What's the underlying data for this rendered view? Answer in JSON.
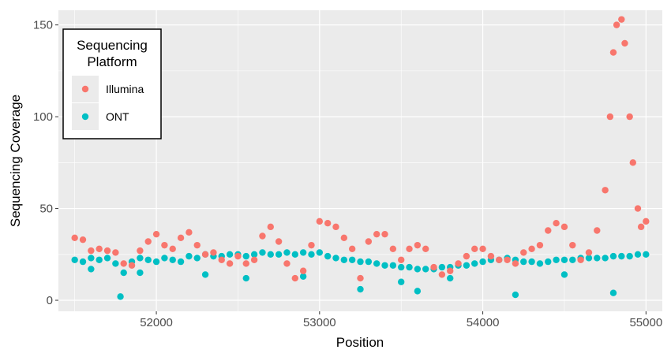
{
  "chart_data": {
    "type": "scatter",
    "title": "",
    "xlabel": "Position",
    "ylabel": "Sequencing Coverage",
    "xlim": [
      51400,
      55100
    ],
    "ylim": [
      -6,
      158
    ],
    "xticks": [
      52000,
      53000,
      54000,
      55000
    ],
    "yticks": [
      0,
      50,
      100,
      150
    ],
    "grid": true,
    "legend": {
      "title_lines": [
        "Sequencing",
        "Platform"
      ],
      "placement": "top-left"
    },
    "series": [
      {
        "name": "Illumina",
        "color": "#F8766D",
        "points": [
          [
            51500,
            34
          ],
          [
            51550,
            33
          ],
          [
            51600,
            27
          ],
          [
            51650,
            28
          ],
          [
            51700,
            27
          ],
          [
            51750,
            26
          ],
          [
            51800,
            20
          ],
          [
            51850,
            19
          ],
          [
            51900,
            27
          ],
          [
            51950,
            32
          ],
          [
            52000,
            36
          ],
          [
            52050,
            30
          ],
          [
            52100,
            28
          ],
          [
            52150,
            34
          ],
          [
            52200,
            37
          ],
          [
            52250,
            30
          ],
          [
            52300,
            25
          ],
          [
            52350,
            26
          ],
          [
            52400,
            22
          ],
          [
            52450,
            20
          ],
          [
            52500,
            24
          ],
          [
            52550,
            20
          ],
          [
            52600,
            22
          ],
          [
            52650,
            35
          ],
          [
            52700,
            40
          ],
          [
            52750,
            32
          ],
          [
            52800,
            20
          ],
          [
            52850,
            12
          ],
          [
            52900,
            16
          ],
          [
            52950,
            30
          ],
          [
            53000,
            43
          ],
          [
            53050,
            42
          ],
          [
            53100,
            40
          ],
          [
            53150,
            34
          ],
          [
            53200,
            28
          ],
          [
            53250,
            12
          ],
          [
            53300,
            32
          ],
          [
            53350,
            36
          ],
          [
            53400,
            36
          ],
          [
            53450,
            28
          ],
          [
            53500,
            22
          ],
          [
            53550,
            28
          ],
          [
            53600,
            30
          ],
          [
            53650,
            28
          ],
          [
            53700,
            18
          ],
          [
            53750,
            14
          ],
          [
            53800,
            16
          ],
          [
            53850,
            20
          ],
          [
            53900,
            24
          ],
          [
            53950,
            28
          ],
          [
            54000,
            28
          ],
          [
            54050,
            24
          ],
          [
            54100,
            22
          ],
          [
            54150,
            22
          ],
          [
            54200,
            20
          ],
          [
            54250,
            26
          ],
          [
            54300,
            28
          ],
          [
            54350,
            30
          ],
          [
            54400,
            38
          ],
          [
            54450,
            42
          ],
          [
            54500,
            40
          ],
          [
            54550,
            30
          ],
          [
            54600,
            22
          ],
          [
            54650,
            26
          ],
          [
            54700,
            38
          ],
          [
            54750,
            60
          ],
          [
            54780,
            100
          ],
          [
            54800,
            135
          ],
          [
            54820,
            150
          ],
          [
            54850,
            153
          ],
          [
            54870,
            140
          ],
          [
            54900,
            100
          ],
          [
            54920,
            75
          ],
          [
            54950,
            50
          ],
          [
            54970,
            40
          ],
          [
            55000,
            43
          ]
        ]
      },
      {
        "name": "ONT",
        "color": "#00BFC4",
        "points": [
          [
            51500,
            22
          ],
          [
            51550,
            21
          ],
          [
            51600,
            23
          ],
          [
            51650,
            22
          ],
          [
            51700,
            23
          ],
          [
            51750,
            20
          ],
          [
            51800,
            15
          ],
          [
            51850,
            21
          ],
          [
            51900,
            23
          ],
          [
            51950,
            22
          ],
          [
            52000,
            21
          ],
          [
            52050,
            23
          ],
          [
            52100,
            22
          ],
          [
            52150,
            21
          ],
          [
            52200,
            24
          ],
          [
            52250,
            23
          ],
          [
            52300,
            25
          ],
          [
            52350,
            24
          ],
          [
            52400,
            24
          ],
          [
            52450,
            25
          ],
          [
            52500,
            25
          ],
          [
            52550,
            24
          ],
          [
            52600,
            25
          ],
          [
            52650,
            26
          ],
          [
            52700,
            25
          ],
          [
            52750,
            25
          ],
          [
            52800,
            26
          ],
          [
            52850,
            25
          ],
          [
            52900,
            26
          ],
          [
            52950,
            25
          ],
          [
            53000,
            26
          ],
          [
            53050,
            24
          ],
          [
            53100,
            23
          ],
          [
            53150,
            22
          ],
          [
            53200,
            22
          ],
          [
            53250,
            21
          ],
          [
            53300,
            21
          ],
          [
            53350,
            20
          ],
          [
            53400,
            19
          ],
          [
            53450,
            19
          ],
          [
            53500,
            18
          ],
          [
            53550,
            18
          ],
          [
            53600,
            17
          ],
          [
            53650,
            17
          ],
          [
            53700,
            17
          ],
          [
            53750,
            18
          ],
          [
            53800,
            18
          ],
          [
            53850,
            19
          ],
          [
            53900,
            19
          ],
          [
            53950,
            20
          ],
          [
            54000,
            21
          ],
          [
            54050,
            22
          ],
          [
            54100,
            22
          ],
          [
            54150,
            23
          ],
          [
            54200,
            22
          ],
          [
            54250,
            21
          ],
          [
            54300,
            21
          ],
          [
            54350,
            20
          ],
          [
            54400,
            21
          ],
          [
            54450,
            22
          ],
          [
            54500,
            22
          ],
          [
            54550,
            22
          ],
          [
            54600,
            23
          ],
          [
            54650,
            23
          ],
          [
            54700,
            23
          ],
          [
            54750,
            23
          ],
          [
            54800,
            24
          ],
          [
            54850,
            24
          ],
          [
            54900,
            24
          ],
          [
            54950,
            25
          ],
          [
            55000,
            25
          ],
          [
            51600,
            17
          ],
          [
            51900,
            15
          ],
          [
            51780,
            2
          ],
          [
            52300,
            14
          ],
          [
            52550,
            12
          ],
          [
            52900,
            13
          ],
          [
            53250,
            6
          ],
          [
            53500,
            10
          ],
          [
            53600,
            5
          ],
          [
            53800,
            12
          ],
          [
            54200,
            3
          ],
          [
            54500,
            14
          ],
          [
            54800,
            4
          ]
        ]
      }
    ]
  }
}
